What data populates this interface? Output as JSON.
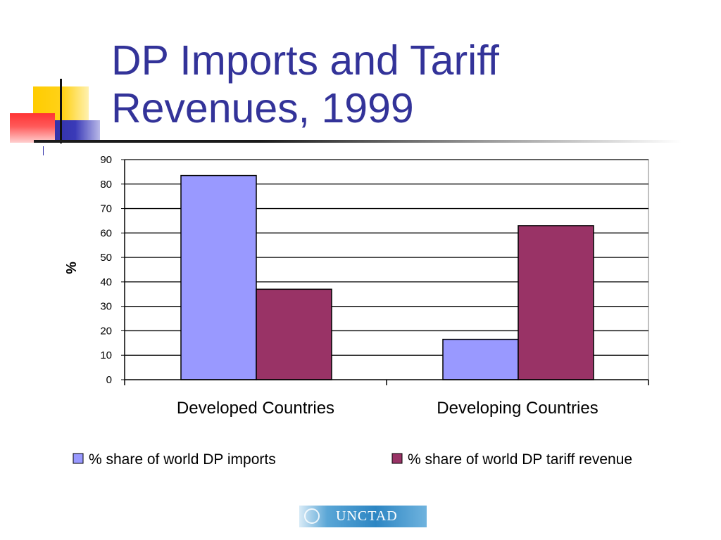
{
  "slide": {
    "title_line1": "DP Imports and Tariff",
    "title_line2": "Revenues, 1999",
    "title_color": "#333399",
    "logo_text": "UNCTAD"
  },
  "chart_data": {
    "type": "bar",
    "title": "",
    "xlabel": "",
    "ylabel": "%",
    "ylim": [
      0,
      90
    ],
    "yticks": [
      0,
      10,
      20,
      30,
      40,
      50,
      60,
      70,
      80,
      90
    ],
    "grid": true,
    "legend_position": "bottom",
    "categories": [
      "Developed Countries",
      "Developing Countries"
    ],
    "series": [
      {
        "name": "% share of world DP imports",
        "values": [
          83.5,
          16.5
        ],
        "color": "#9999ff"
      },
      {
        "name": "% share of world DP tariff revenue",
        "values": [
          37,
          63
        ],
        "color": "#993366"
      }
    ]
  }
}
